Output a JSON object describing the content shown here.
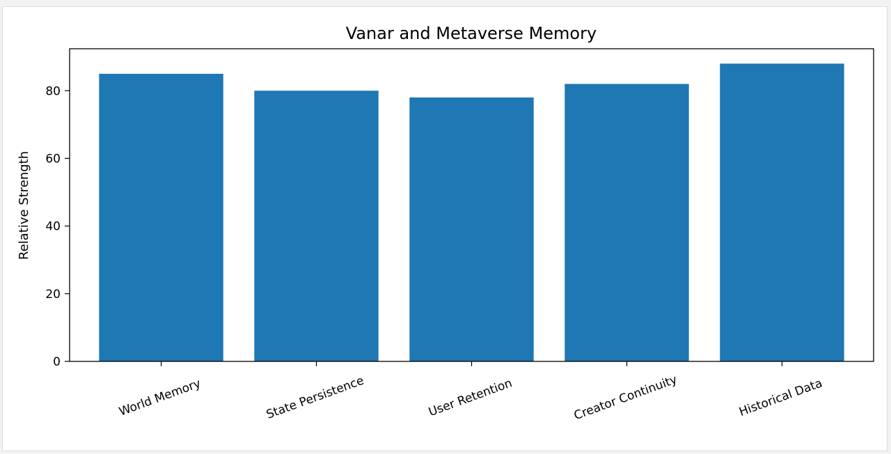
{
  "chart_data": {
    "type": "bar",
    "title": "Vanar and Metaverse Memory",
    "xlabel": "",
    "ylabel": "Relative Strength",
    "categories": [
      "World Memory",
      "State Persistence",
      "User Retention",
      "Creator Continuity",
      "Historical Data"
    ],
    "values": [
      85,
      80,
      78,
      82,
      88
    ],
    "ylim": [
      0,
      92.4
    ],
    "yticks": [
      0,
      20,
      40,
      60,
      80
    ],
    "xtick_rotation_deg": 20,
    "grid": false,
    "legend": "none",
    "bar_color": "#1f77b4"
  }
}
